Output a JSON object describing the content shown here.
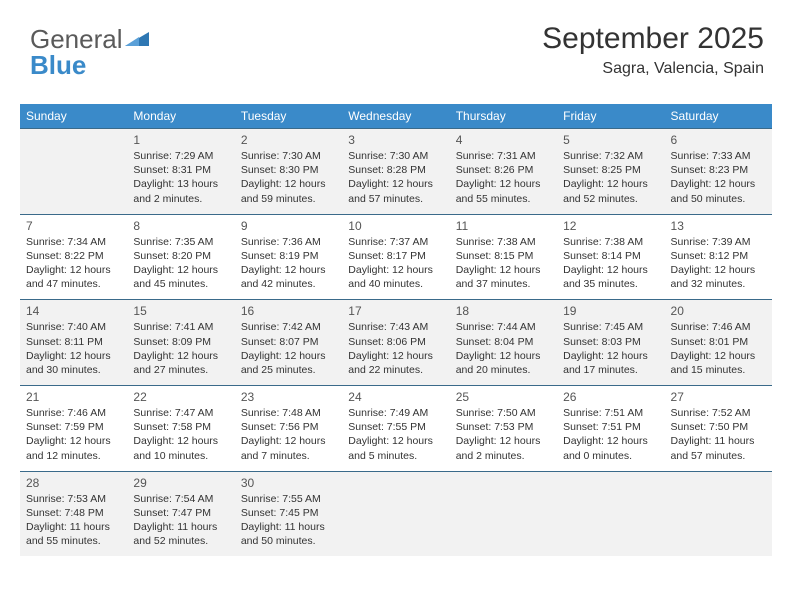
{
  "brand": {
    "word1": "General",
    "word2": "Blue"
  },
  "header": {
    "month_year": "September 2025",
    "location": "Sagra, Valencia, Spain"
  },
  "colors": {
    "header_bg": "#3a8ac9",
    "header_text": "#ffffff",
    "row_alt_bg": "#f2f2f2",
    "row_bg": "#ffffff",
    "border": "#3a6a8a",
    "text": "#333333"
  },
  "day_headers": [
    "Sunday",
    "Monday",
    "Tuesday",
    "Wednesday",
    "Thursday",
    "Friday",
    "Saturday"
  ],
  "weeks": [
    [
      null,
      {
        "n": "1",
        "sr": "7:29 AM",
        "ss": "8:31 PM",
        "dl": "13 hours and 2 minutes."
      },
      {
        "n": "2",
        "sr": "7:30 AM",
        "ss": "8:30 PM",
        "dl": "12 hours and 59 minutes."
      },
      {
        "n": "3",
        "sr": "7:30 AM",
        "ss": "8:28 PM",
        "dl": "12 hours and 57 minutes."
      },
      {
        "n": "4",
        "sr": "7:31 AM",
        "ss": "8:26 PM",
        "dl": "12 hours and 55 minutes."
      },
      {
        "n": "5",
        "sr": "7:32 AM",
        "ss": "8:25 PM",
        "dl": "12 hours and 52 minutes."
      },
      {
        "n": "6",
        "sr": "7:33 AM",
        "ss": "8:23 PM",
        "dl": "12 hours and 50 minutes."
      }
    ],
    [
      {
        "n": "7",
        "sr": "7:34 AM",
        "ss": "8:22 PM",
        "dl": "12 hours and 47 minutes."
      },
      {
        "n": "8",
        "sr": "7:35 AM",
        "ss": "8:20 PM",
        "dl": "12 hours and 45 minutes."
      },
      {
        "n": "9",
        "sr": "7:36 AM",
        "ss": "8:19 PM",
        "dl": "12 hours and 42 minutes."
      },
      {
        "n": "10",
        "sr": "7:37 AM",
        "ss": "8:17 PM",
        "dl": "12 hours and 40 minutes."
      },
      {
        "n": "11",
        "sr": "7:38 AM",
        "ss": "8:15 PM",
        "dl": "12 hours and 37 minutes."
      },
      {
        "n": "12",
        "sr": "7:38 AM",
        "ss": "8:14 PM",
        "dl": "12 hours and 35 minutes."
      },
      {
        "n": "13",
        "sr": "7:39 AM",
        "ss": "8:12 PM",
        "dl": "12 hours and 32 minutes."
      }
    ],
    [
      {
        "n": "14",
        "sr": "7:40 AM",
        "ss": "8:11 PM",
        "dl": "12 hours and 30 minutes."
      },
      {
        "n": "15",
        "sr": "7:41 AM",
        "ss": "8:09 PM",
        "dl": "12 hours and 27 minutes."
      },
      {
        "n": "16",
        "sr": "7:42 AM",
        "ss": "8:07 PM",
        "dl": "12 hours and 25 minutes."
      },
      {
        "n": "17",
        "sr": "7:43 AM",
        "ss": "8:06 PM",
        "dl": "12 hours and 22 minutes."
      },
      {
        "n": "18",
        "sr": "7:44 AM",
        "ss": "8:04 PM",
        "dl": "12 hours and 20 minutes."
      },
      {
        "n": "19",
        "sr": "7:45 AM",
        "ss": "8:03 PM",
        "dl": "12 hours and 17 minutes."
      },
      {
        "n": "20",
        "sr": "7:46 AM",
        "ss": "8:01 PM",
        "dl": "12 hours and 15 minutes."
      }
    ],
    [
      {
        "n": "21",
        "sr": "7:46 AM",
        "ss": "7:59 PM",
        "dl": "12 hours and 12 minutes."
      },
      {
        "n": "22",
        "sr": "7:47 AM",
        "ss": "7:58 PM",
        "dl": "12 hours and 10 minutes."
      },
      {
        "n": "23",
        "sr": "7:48 AM",
        "ss": "7:56 PM",
        "dl": "12 hours and 7 minutes."
      },
      {
        "n": "24",
        "sr": "7:49 AM",
        "ss": "7:55 PM",
        "dl": "12 hours and 5 minutes."
      },
      {
        "n": "25",
        "sr": "7:50 AM",
        "ss": "7:53 PM",
        "dl": "12 hours and 2 minutes."
      },
      {
        "n": "26",
        "sr": "7:51 AM",
        "ss": "7:51 PM",
        "dl": "12 hours and 0 minutes."
      },
      {
        "n": "27",
        "sr": "7:52 AM",
        "ss": "7:50 PM",
        "dl": "11 hours and 57 minutes."
      }
    ],
    [
      {
        "n": "28",
        "sr": "7:53 AM",
        "ss": "7:48 PM",
        "dl": "11 hours and 55 minutes."
      },
      {
        "n": "29",
        "sr": "7:54 AM",
        "ss": "7:47 PM",
        "dl": "11 hours and 52 minutes."
      },
      {
        "n": "30",
        "sr": "7:55 AM",
        "ss": "7:45 PM",
        "dl": "11 hours and 50 minutes."
      },
      null,
      null,
      null,
      null
    ]
  ],
  "labels": {
    "sunrise": "Sunrise:",
    "sunset": "Sunset:",
    "daylight": "Daylight:"
  }
}
